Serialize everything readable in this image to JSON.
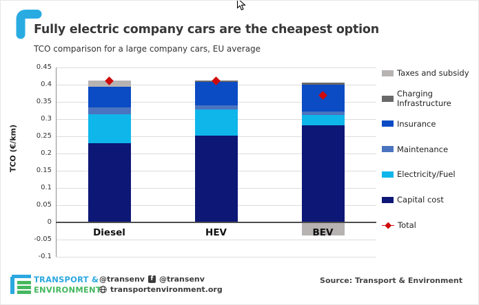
{
  "header": {
    "title": "Fully electric company cars are the cheapest option",
    "subtitle": "TCO comparison for a large company cars, EU average"
  },
  "chart_data": {
    "type": "bar",
    "stacked": true,
    "title": "Fully electric company cars are the cheapest option",
    "subtitle": "TCO comparison for a large company cars, EU average",
    "categories": [
      "Diesel",
      "HEV",
      "BEV"
    ],
    "xlabel": "",
    "ylabel": "TCO (€/km)",
    "ylim": [
      -0.1,
      0.45
    ],
    "ytick_step": 0.05,
    "grid": true,
    "legend_position": "right",
    "series": [
      {
        "name": "Capital cost",
        "color": "#0d1775",
        "values": [
          0.23,
          0.253,
          0.283
        ]
      },
      {
        "name": "Electricity/Fuel",
        "color": "#0fb6ea",
        "values": [
          0.085,
          0.075,
          0.03
        ]
      },
      {
        "name": "Maintenance",
        "color": "#4a74bf",
        "values": [
          0.02,
          0.012,
          0.01
        ]
      },
      {
        "name": "Insurance",
        "color": "#0b4bc4",
        "values": [
          0.06,
          0.068,
          0.078
        ]
      },
      {
        "name": "Charging Infrastructure",
        "color": "#696969",
        "values": [
          0.0,
          0.004,
          0.005
        ]
      },
      {
        "name": "Taxes and subsidy",
        "color": "#b7b3b3",
        "values": [
          0.017,
          0.0,
          -0.037
        ]
      }
    ],
    "total_markers": {
      "name": "Total",
      "color": "#cf0a0a",
      "values": [
        0.412,
        0.412,
        0.369
      ]
    },
    "legend": [
      {
        "label": "Taxes and subsidy",
        "color": "#b7b3b3",
        "marker": "box"
      },
      {
        "label": "Charging Infrastructure",
        "color": "#696969",
        "marker": "box"
      },
      {
        "label": "Insurance",
        "color": "#0b4bc4",
        "marker": "box"
      },
      {
        "label": "Maintenance",
        "color": "#4a74bf",
        "marker": "box"
      },
      {
        "label": "Electricity/Fuel",
        "color": "#0fb6ea",
        "marker": "box"
      },
      {
        "label": "Capital cost",
        "color": "#0d1775",
        "marker": "box"
      },
      {
        "label": "Total",
        "color": "#cf0a0a",
        "marker": "diamond"
      }
    ]
  },
  "footer": {
    "brand_line1": "TRANSPORT &",
    "brand_line2": "ENVIRONMENT",
    "twitter_handle": "@transenv",
    "facebook_handle": "@transenv",
    "website": "transportenvironment.org",
    "source": "Source: Transport & Environment"
  },
  "colors": {
    "accent_cyan": "#29abe2",
    "brand_blue": "#2ca8e0",
    "brand_green": "#45b860",
    "total_red": "#cf0a0a"
  }
}
